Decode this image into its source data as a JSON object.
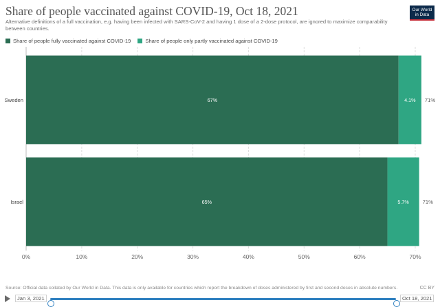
{
  "header": {
    "title": "Share of people vaccinated against COVID-19, Oct 18, 2021",
    "subtitle": "Alternative definitions of a full vaccination, e.g. having been infected with SARS-CoV-2 and having 1 dose of a 2-dose protocol, are ignored to maximize comparability between countries.",
    "logo_line1": "Our World",
    "logo_line2": "in Data"
  },
  "legend": [
    {
      "label": "Share of people fully vaccinated against COVID-19",
      "color": "#2b6d53"
    },
    {
      "label": "Share of people only partly vaccinated against COVID-19",
      "color": "#2fa683"
    }
  ],
  "chart_data": {
    "type": "bar",
    "orientation": "horizontal",
    "stacked": true,
    "categories": [
      "Sweden",
      "Israel"
    ],
    "series": [
      {
        "name": "Share of people fully vaccinated against COVID-19",
        "values": [
          67,
          65
        ],
        "labels": [
          "67%",
          "65%"
        ],
        "color": "#2b6d53"
      },
      {
        "name": "Share of people only partly vaccinated against COVID-19",
        "values": [
          4.1,
          5.7
        ],
        "labels": [
          "4.1%",
          "5.7%"
        ],
        "color": "#2fa683"
      }
    ],
    "totals": [
      "71%",
      "71%"
    ],
    "xlim": [
      0,
      70
    ],
    "xticks": [
      0,
      10,
      20,
      30,
      40,
      50,
      60,
      70
    ],
    "xtick_labels": [
      "0%",
      "10%",
      "20%",
      "30%",
      "40%",
      "50%",
      "60%",
      "70%"
    ],
    "grid": true
  },
  "footer": {
    "source": "Source: Official data collated by Our World in Data. This data is only available for countries which report the breakdown of doses administered by first and second doses in absolute numbers.",
    "license": "CC BY"
  },
  "timeline": {
    "start_label": "Jan 3, 2021",
    "end_label": "Oct 18, 2021",
    "position_fraction": 1.0
  }
}
